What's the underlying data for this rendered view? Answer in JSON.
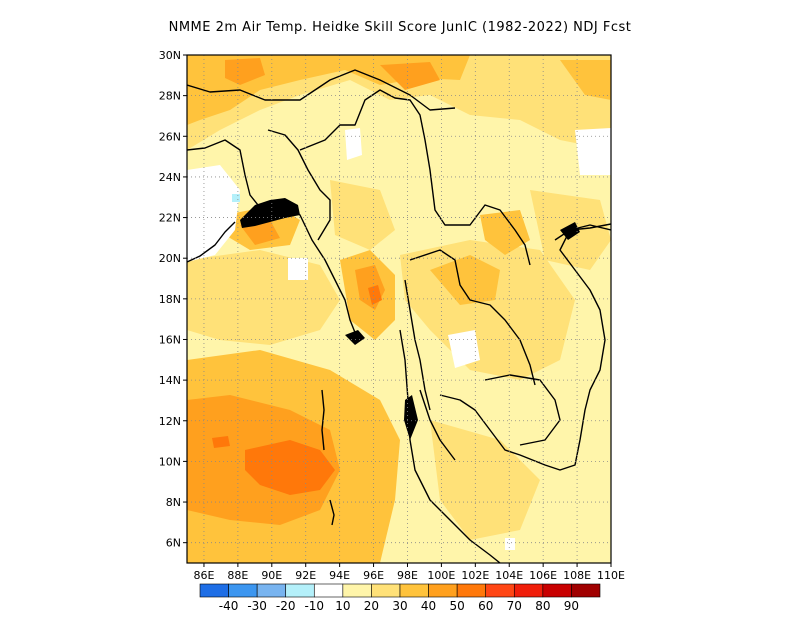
{
  "title": "NMME  2m Air Temp. Heidke Skill Score JunIC (1982-2022) NDJ Fcst",
  "map": {
    "lon_range": [
      85,
      110
    ],
    "lat_range": [
      5,
      30
    ],
    "lat_labels": [
      "30N",
      "28N",
      "26N",
      "24N",
      "22N",
      "20N",
      "18N",
      "16N",
      "14N",
      "12N",
      "10N",
      "8N",
      "6N"
    ],
    "lon_labels": [
      "86E",
      "88E",
      "90E",
      "92E",
      "94E",
      "96E",
      "98E",
      "100E",
      "102E",
      "104E",
      "106E",
      "108E",
      "110E"
    ],
    "gridlines": true
  },
  "colorbar": {
    "colors": [
      "#1e6ee6",
      "#3c96f0",
      "#78b4f0",
      "#b4f0fa",
      "#ffffff",
      "#fff5aa",
      "#ffe178",
      "#ffc33c",
      "#ffa01e",
      "#ff780a",
      "#ff4614",
      "#f01e0a",
      "#c80000",
      "#a00000"
    ],
    "labels": [
      "-40",
      "-30",
      "-20",
      "-10",
      "10",
      "20",
      "30",
      "40",
      "50",
      "60",
      "70",
      "80",
      "90"
    ]
  }
}
